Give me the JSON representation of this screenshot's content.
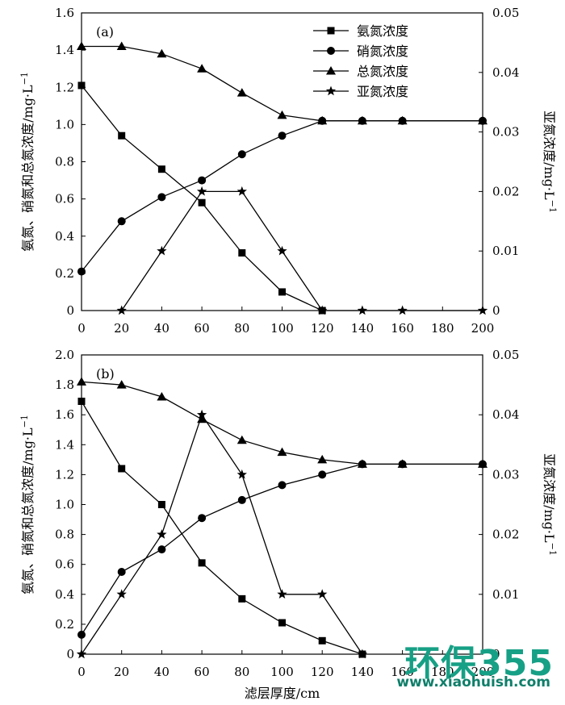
{
  "chart_data": [
    {
      "type": "line",
      "panel_label": "(a)",
      "x": [
        0,
        20,
        40,
        60,
        80,
        100,
        120,
        140,
        160,
        200
      ],
      "xlim": [
        0,
        200
      ],
      "xticks": [
        "0",
        "20",
        "40",
        "60",
        "80",
        "100",
        "120",
        "140",
        "160",
        "180",
        "200"
      ],
      "ylim": [
        0,
        1.6
      ],
      "yticks": [
        "0",
        "0.2",
        "0.4",
        "0.6",
        "0.8",
        "1.0",
        "1.2",
        "1.4",
        "1.6"
      ],
      "y2lim": [
        0,
        0.05
      ],
      "y2ticks": [
        "0",
        "0.01",
        "0.02",
        "0.03",
        "0.04",
        "0.05"
      ],
      "ylabel": "氨氮、硝氮和总氮浓度/mg·L",
      "y2label": "亚氮浓度/mg·L",
      "label_superscript": "−1",
      "legend_position": "top-right",
      "series": [
        {
          "name": "氨氮浓度",
          "marker": "square",
          "axis": "left",
          "x": [
            0,
            20,
            40,
            60,
            80,
            100,
            120
          ],
          "values": [
            1.21,
            0.94,
            0.76,
            0.58,
            0.31,
            0.1,
            0.0
          ]
        },
        {
          "name": "硝氮浓度",
          "marker": "circle",
          "axis": "left",
          "x": [
            0,
            20,
            40,
            60,
            80,
            100,
            120,
            140,
            160,
            200
          ],
          "values": [
            0.21,
            0.48,
            0.61,
            0.7,
            0.84,
            0.94,
            1.02,
            1.02,
            1.02,
            1.02
          ]
        },
        {
          "name": "总氮浓度",
          "marker": "triangle",
          "axis": "left",
          "x": [
            0,
            20,
            40,
            60,
            80,
            100,
            120,
            140,
            160,
            200
          ],
          "values": [
            1.42,
            1.42,
            1.38,
            1.3,
            1.17,
            1.05,
            1.02,
            1.02,
            1.02,
            1.02
          ]
        },
        {
          "name": "亚氮浓度",
          "marker": "star",
          "axis": "right",
          "x": [
            20,
            40,
            60,
            80,
            100,
            120,
            140,
            160,
            200
          ],
          "values": [
            0.0,
            0.01,
            0.02,
            0.02,
            0.01,
            0.0,
            0.0,
            0.0,
            0.0
          ]
        }
      ]
    },
    {
      "type": "line",
      "panel_label": "(b)",
      "xlim": [
        0,
        200
      ],
      "xticks": [
        "0",
        "20",
        "40",
        "60",
        "80",
        "100",
        "120",
        "140",
        "160",
        "180",
        "200"
      ],
      "xlabel": "滤层厚度/cm",
      "ylim": [
        0,
        2.0
      ],
      "yticks": [
        "0",
        "0.2",
        "0.4",
        "0.6",
        "0.8",
        "1.0",
        "1.2",
        "1.4",
        "1.6",
        "1.8",
        "2.0"
      ],
      "y2lim": [
        0,
        0.05
      ],
      "y2ticks": [
        "0",
        "0.01",
        "0.02",
        "0.03",
        "0.04",
        "0.05"
      ],
      "ylabel": "氨氮、硝氮和总氮浓度/mg·L",
      "y2label": "亚氮浓度/mg·L",
      "label_superscript": "−1",
      "series": [
        {
          "name": "氨氮浓度",
          "marker": "square",
          "axis": "left",
          "x": [
            0,
            20,
            40,
            60,
            80,
            100,
            120,
            140
          ],
          "values": [
            1.69,
            1.24,
            1.0,
            0.61,
            0.37,
            0.21,
            0.09,
            0.0
          ]
        },
        {
          "name": "硝氮浓度",
          "marker": "circle",
          "axis": "left",
          "x": [
            0,
            20,
            40,
            60,
            80,
            100,
            120,
            140,
            160,
            200
          ],
          "values": [
            0.13,
            0.55,
            0.7,
            0.91,
            1.03,
            1.13,
            1.2,
            1.27,
            1.27,
            1.27
          ]
        },
        {
          "name": "总氮浓度",
          "marker": "triangle",
          "axis": "left",
          "x": [
            0,
            20,
            40,
            60,
            80,
            100,
            120,
            140,
            160,
            200
          ],
          "values": [
            1.82,
            1.8,
            1.72,
            1.57,
            1.43,
            1.35,
            1.3,
            1.27,
            1.27,
            1.27
          ]
        },
        {
          "name": "亚氮浓度",
          "marker": "star",
          "axis": "right",
          "x": [
            0,
            20,
            40,
            60,
            80,
            100,
            120,
            140
          ],
          "values": [
            0.0,
            0.01,
            0.02,
            0.04,
            0.03,
            0.01,
            0.01,
            0.0
          ]
        }
      ]
    }
  ],
  "watermark": {
    "logo": "环保355",
    "url": "www.xiaohuish.com"
  }
}
